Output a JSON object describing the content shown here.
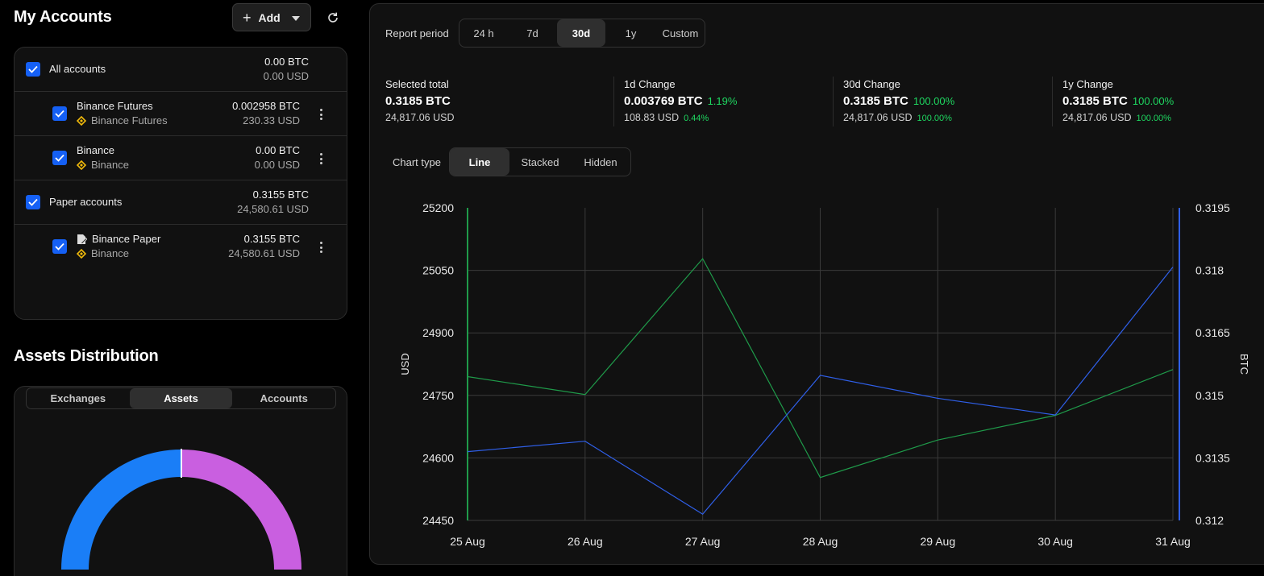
{
  "accounts": {
    "title": "My Accounts",
    "add_label": "Add",
    "rows": [
      {
        "name": "All accounts",
        "btc": "0.00 BTC",
        "usd": "0.00 USD"
      },
      {
        "name": "Binance Futures",
        "sub": "Binance Futures",
        "btc": "0.002958 BTC",
        "usd": "230.33 USD"
      },
      {
        "name": "Binance",
        "sub": "Binance",
        "btc": "0.00 BTC",
        "usd": "0.00 USD"
      },
      {
        "name": "Paper accounts",
        "btc": "0.3155 BTC",
        "usd": "24,580.61 USD"
      },
      {
        "name": "Binance Paper",
        "sub": "Binance",
        "btc": "0.3155 BTC",
        "usd": "24,580.61 USD"
      }
    ]
  },
  "distribution": {
    "title": "Assets Distribution",
    "tabs": [
      "Exchanges",
      "Assets",
      "Accounts"
    ],
    "active_tab": "Assets",
    "donut_colors": [
      "#1a7ef7",
      "#c95fe0"
    ]
  },
  "report": {
    "period_label": "Report period",
    "periods": [
      "24 h",
      "7d",
      "30d",
      "1y",
      "Custom"
    ],
    "active_period": "30d",
    "stats": [
      {
        "title": "Selected total",
        "btc": "0.3185 BTC",
        "usd": "24,817.06 USD",
        "btc_pct": "",
        "usd_pct": ""
      },
      {
        "title": "1d Change",
        "btc": "0.003769 BTC",
        "btc_pct": "1.19%",
        "usd": "108.83 USD",
        "usd_pct": "0.44%"
      },
      {
        "title": "30d Change",
        "btc": "0.3185 BTC",
        "btc_pct": "100.00%",
        "usd": "24,817.06 USD",
        "usd_pct": "100.00%"
      },
      {
        "title": "1y Change",
        "btc": "0.3185 BTC",
        "btc_pct": "100.00%",
        "usd": "24,817.06 USD",
        "usd_pct": "100.00%"
      }
    ],
    "chart_type_label": "Chart type",
    "chart_types": [
      "Line",
      "Stacked",
      "Hidden"
    ],
    "active_chart_type": "Line",
    "positive_color": "#1ed760"
  },
  "chart_data": {
    "type": "line",
    "x": [
      "25 Aug",
      "26 Aug",
      "27 Aug",
      "28 Aug",
      "29 Aug",
      "30 Aug",
      "31 Aug"
    ],
    "y_left_label": "USD",
    "y_right_label": "BTC",
    "y_left_ticks": [
      "25200",
      "25050",
      "24900",
      "24750",
      "24600",
      "24450"
    ],
    "y_right_ticks": [
      "0.3195",
      "0.318",
      "0.3165",
      "0.315",
      "0.3135",
      "0.312"
    ],
    "y_left_lim": [
      24450,
      25200
    ],
    "y_right_lim": [
      0.312,
      0.3195
    ],
    "series": [
      {
        "axis": "left",
        "color": "#1f9b4a",
        "values": [
          24795,
          24752,
          25078,
          24553,
          24643,
          24702,
          24812
        ]
      },
      {
        "axis": "right",
        "color": "#2f5fe8",
        "values": [
          0.31365,
          0.3139,
          0.31215,
          0.31548,
          0.31493,
          0.31453,
          0.31808
        ]
      }
    ],
    "grid": true
  }
}
